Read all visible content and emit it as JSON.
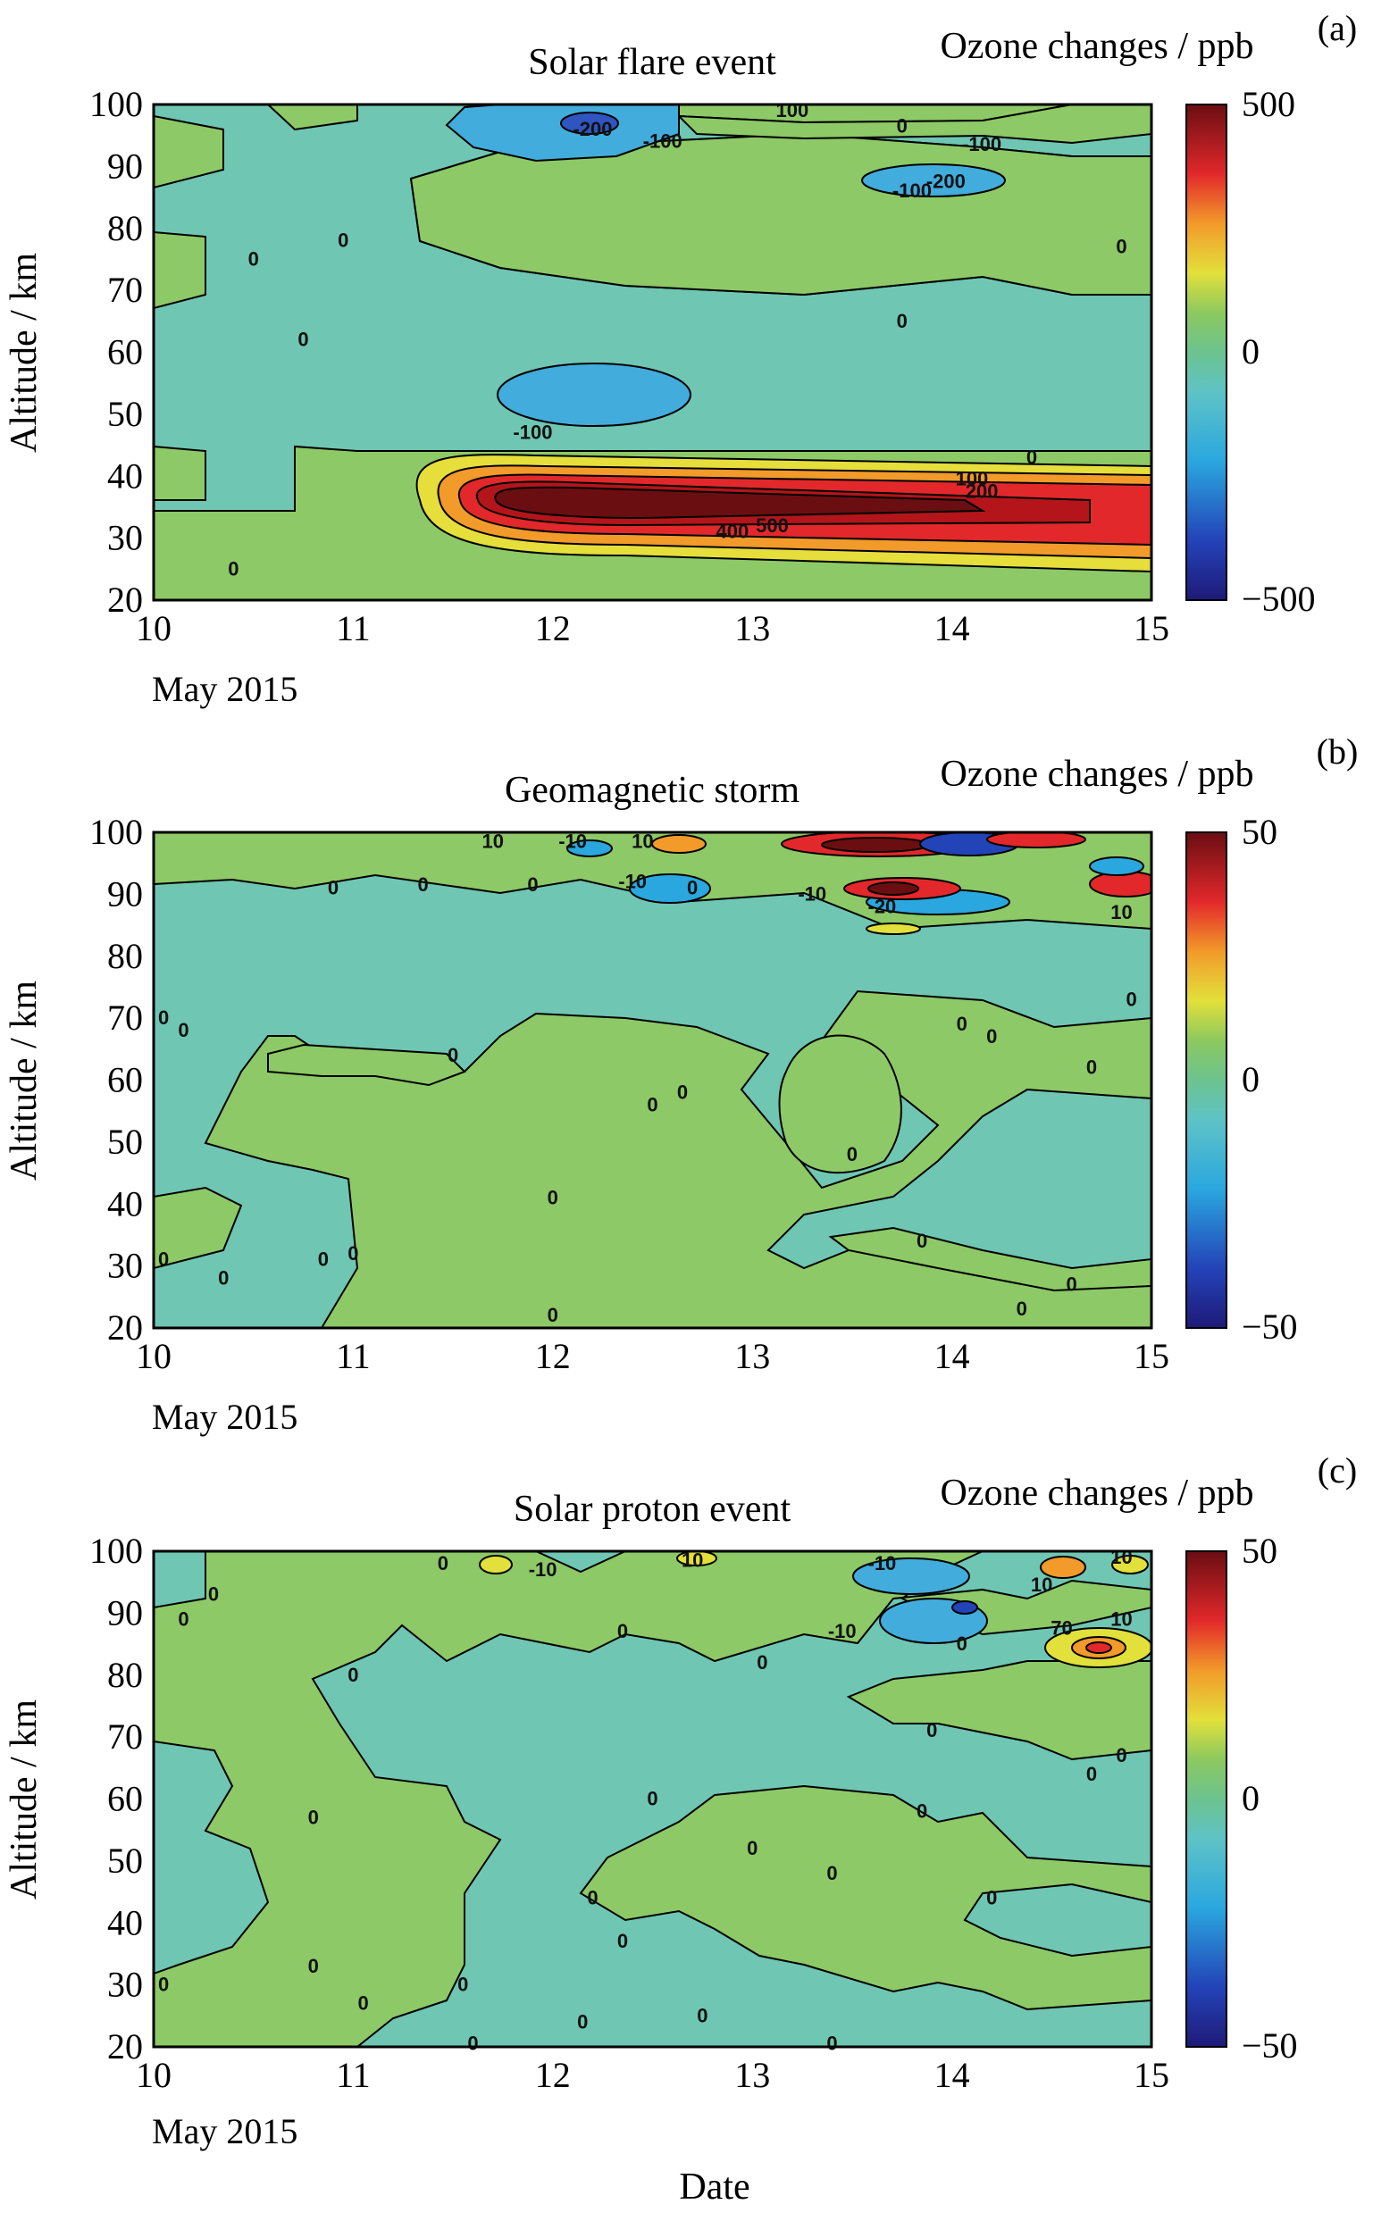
{
  "chart_data": [
    {
      "type": "heatmap",
      "panel_label": "(a)",
      "title": "Solar flare event",
      "colorbar_title": "Ozone changes / ppb",
      "colorbar_ticks": [
        "500",
        "0",
        "−500"
      ],
      "clim": [
        -500,
        500
      ],
      "ylabel": "Altitude / km",
      "xlabel": "",
      "x_ticks": [
        "10",
        "11",
        "12",
        "13",
        "14",
        "15"
      ],
      "x_sublabel": "May 2015",
      "y_ticks": [
        "100",
        "90",
        "80",
        "70",
        "60",
        "50",
        "40",
        "30",
        "20"
      ],
      "xlim": [
        10,
        15
      ],
      "ylim": [
        20,
        100
      ],
      "contour_labels": [
        {
          "text": "-200",
          "x": 12.2,
          "y": 96
        },
        {
          "text": "-100",
          "x": 12.55,
          "y": 94
        },
        {
          "text": "100",
          "x": 13.2,
          "y": 99
        },
        {
          "text": "0",
          "x": 13.75,
          "y": 96.5
        },
        {
          "text": "-100",
          "x": 14.15,
          "y": 93.5
        },
        {
          "text": "-200",
          "x": 13.97,
          "y": 87.5
        },
        {
          "text": "-100",
          "x": 13.8,
          "y": 86
        },
        {
          "text": "0",
          "x": 10.5,
          "y": 75
        },
        {
          "text": "0",
          "x": 10.95,
          "y": 78
        },
        {
          "text": "0",
          "x": 10.75,
          "y": 62
        },
        {
          "text": "0",
          "x": 13.75,
          "y": 65
        },
        {
          "text": "0",
          "x": 14.85,
          "y": 77
        },
        {
          "text": "-100",
          "x": 11.9,
          "y": 47
        },
        {
          "text": "0",
          "x": 14.4,
          "y": 43
        },
        {
          "text": "100",
          "x": 14.1,
          "y": 39.5
        },
        {
          "text": "200",
          "x": 14.15,
          "y": 37.5
        },
        {
          "text": "400",
          "x": 12.9,
          "y": 31
        },
        {
          "text": "500",
          "x": 13.1,
          "y": 32
        },
        {
          "text": "0",
          "x": 10.4,
          "y": 25
        }
      ]
    },
    {
      "type": "heatmap",
      "panel_label": "(b)",
      "title": "Geomagnetic storm",
      "colorbar_title": "Ozone changes / ppb",
      "colorbar_ticks": [
        "50",
        "0",
        "−50"
      ],
      "clim": [
        -50,
        50
      ],
      "ylabel": "Altitude / km",
      "xlabel": "",
      "x_ticks": [
        "10",
        "11",
        "12",
        "13",
        "14",
        "15"
      ],
      "x_sublabel": "May 2015",
      "y_ticks": [
        "100",
        "90",
        "80",
        "70",
        "60",
        "50",
        "40",
        "30",
        "20"
      ],
      "xlim": [
        10,
        15
      ],
      "ylim": [
        20,
        100
      ],
      "contour_labels": [
        {
          "text": "0",
          "x": 10.9,
          "y": 91
        },
        {
          "text": "0",
          "x": 11.35,
          "y": 91.5
        },
        {
          "text": "0",
          "x": 11.9,
          "y": 91.5
        },
        {
          "text": "10",
          "x": 11.7,
          "y": 98.5
        },
        {
          "text": "-10",
          "x": 12.1,
          "y": 98.5
        },
        {
          "text": "10",
          "x": 12.45,
          "y": 98.5
        },
        {
          "text": "-10",
          "x": 12.4,
          "y": 92
        },
        {
          "text": "0",
          "x": 12.7,
          "y": 91
        },
        {
          "text": "-10",
          "x": 13.3,
          "y": 90
        },
        {
          "text": "-20",
          "x": 13.65,
          "y": 88
        },
        {
          "text": "10",
          "x": 14.85,
          "y": 87
        },
        {
          "text": "0",
          "x": 10.05,
          "y": 70
        },
        {
          "text": "0",
          "x": 10.15,
          "y": 68
        },
        {
          "text": "0",
          "x": 11.5,
          "y": 64
        },
        {
          "text": "0",
          "x": 12.5,
          "y": 56
        },
        {
          "text": "0",
          "x": 12.65,
          "y": 58
        },
        {
          "text": "0",
          "x": 14.05,
          "y": 69
        },
        {
          "text": "0",
          "x": 14.2,
          "y": 67
        },
        {
          "text": "0",
          "x": 14.7,
          "y": 62
        },
        {
          "text": "0",
          "x": 14.9,
          "y": 73
        },
        {
          "text": "0",
          "x": 10.35,
          "y": 28
        },
        {
          "text": "0",
          "x": 10.05,
          "y": 31
        },
        {
          "text": "0",
          "x": 10.85,
          "y": 31
        },
        {
          "text": "0",
          "x": 11.0,
          "y": 32
        },
        {
          "text": "0",
          "x": 12.0,
          "y": 41
        },
        {
          "text": "0",
          "x": 12.0,
          "y": 22
        },
        {
          "text": "0",
          "x": 13.5,
          "y": 48
        },
        {
          "text": "0",
          "x": 13.85,
          "y": 34
        },
        {
          "text": "0",
          "x": 14.6,
          "y": 27
        },
        {
          "text": "0",
          "x": 14.35,
          "y": 23
        }
      ]
    },
    {
      "type": "heatmap",
      "panel_label": "(c)",
      "title": "Solar proton event",
      "colorbar_title": "Ozone changes / ppb",
      "colorbar_ticks": [
        "50",
        "0",
        "−50"
      ],
      "clim": [
        -50,
        50
      ],
      "ylabel": "Altitude / km",
      "xlabel": "Date",
      "x_ticks": [
        "10",
        "11",
        "12",
        "13",
        "14",
        "15"
      ],
      "x_sublabel": "May 2015",
      "y_ticks": [
        "100",
        "90",
        "80",
        "70",
        "60",
        "50",
        "40",
        "30",
        "20"
      ],
      "xlim": [
        10,
        15
      ],
      "ylim": [
        20,
        100
      ],
      "contour_labels": [
        {
          "text": "0",
          "x": 11.45,
          "y": 98
        },
        {
          "text": "-10",
          "x": 11.95,
          "y": 97
        },
        {
          "text": "10",
          "x": 12.7,
          "y": 98.5
        },
        {
          "text": "-10",
          "x": 13.65,
          "y": 98
        },
        {
          "text": "10",
          "x": 14.45,
          "y": 94.5
        },
        {
          "text": "10",
          "x": 14.85,
          "y": 99
        },
        {
          "text": "0",
          "x": 10.3,
          "y": 93
        },
        {
          "text": "0",
          "x": 10.15,
          "y": 89
        },
        {
          "text": "-10",
          "x": 13.45,
          "y": 87
        },
        {
          "text": "70",
          "x": 14.55,
          "y": 87.5
        },
        {
          "text": "10",
          "x": 14.85,
          "y": 89
        },
        {
          "text": "0",
          "x": 12.35,
          "y": 87
        },
        {
          "text": "0",
          "x": 11.0,
          "y": 80
        },
        {
          "text": "0",
          "x": 13.05,
          "y": 82
        },
        {
          "text": "0",
          "x": 14.05,
          "y": 85
        },
        {
          "text": "0",
          "x": 13.9,
          "y": 71
        },
        {
          "text": "0",
          "x": 14.85,
          "y": 67
        },
        {
          "text": "0",
          "x": 14.7,
          "y": 64
        },
        {
          "text": "0",
          "x": 10.8,
          "y": 57
        },
        {
          "text": "0",
          "x": 12.5,
          "y": 60
        },
        {
          "text": "0",
          "x": 13.0,
          "y": 52
        },
        {
          "text": "0",
          "x": 13.4,
          "y": 48
        },
        {
          "text": "0",
          "x": 13.85,
          "y": 58
        },
        {
          "text": "0",
          "x": 12.2,
          "y": 44
        },
        {
          "text": "0",
          "x": 12.35,
          "y": 37
        },
        {
          "text": "0",
          "x": 14.2,
          "y": 44
        },
        {
          "text": "0",
          "x": 10.05,
          "y": 30
        },
        {
          "text": "0",
          "x": 10.8,
          "y": 33
        },
        {
          "text": "0",
          "x": 11.05,
          "y": 27
        },
        {
          "text": "0",
          "x": 11.55,
          "y": 30
        },
        {
          "text": "0",
          "x": 12.75,
          "y": 25
        },
        {
          "text": "0",
          "x": 11.6,
          "y": 20.5
        },
        {
          "text": "0",
          "x": 13.4,
          "y": 20.5
        },
        {
          "text": "0",
          "x": 12.15,
          "y": 24
        }
      ]
    }
  ]
}
